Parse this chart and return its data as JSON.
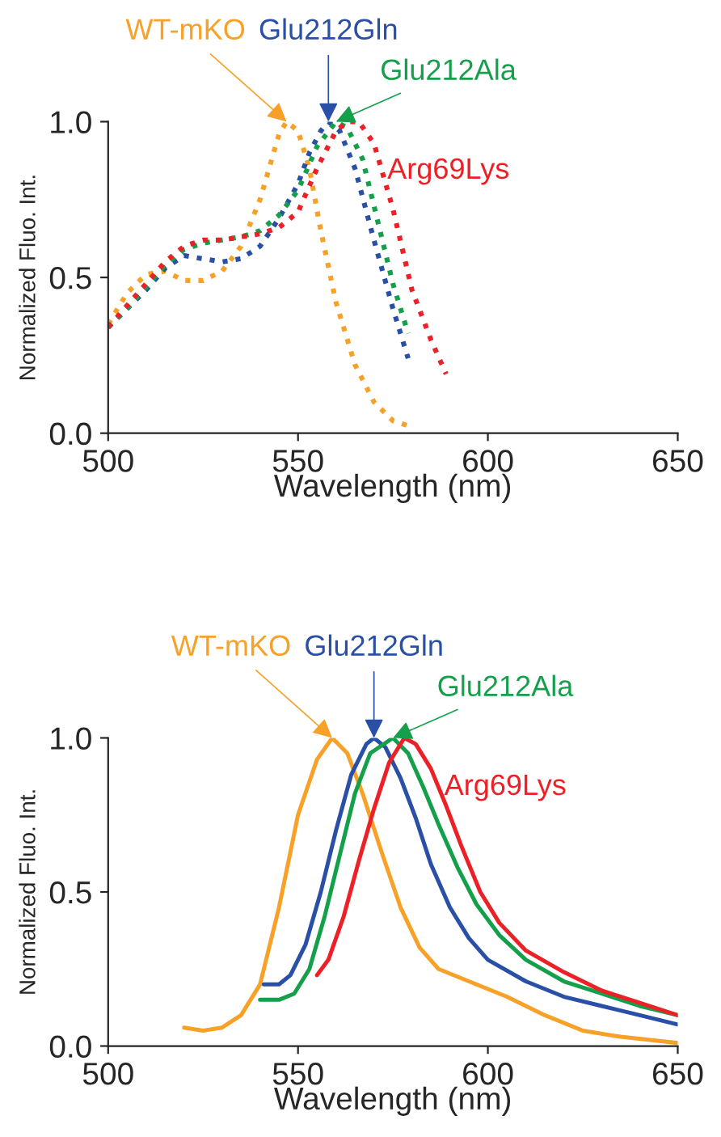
{
  "chart_data": [
    {
      "type": "line",
      "xlabel": "Wavelength (nm)",
      "ylabel": "Normalized Fluo. Int.",
      "xlim": [
        500,
        650
      ],
      "xticks": [
        500,
        550,
        600,
        650
      ],
      "ylim": [
        0,
        1.0
      ],
      "yticks": [
        {
          "value": 0,
          "label": "0.0"
        },
        {
          "value": 0.5,
          "label": "0.5"
        },
        {
          "value": 1.0,
          "label": "1.0"
        }
      ],
      "line_style": "dotted",
      "grid": false,
      "legend": false,
      "series": [
        {
          "name": "WT-mKO",
          "color": "#f7a128",
          "x": [
            500,
            505,
            510,
            515,
            520,
            525,
            530,
            535,
            540,
            545,
            547,
            550,
            553,
            556,
            560,
            565,
            570,
            575,
            580
          ],
          "values": [
            0.35,
            0.45,
            0.51,
            0.52,
            0.49,
            0.49,
            0.52,
            0.6,
            0.75,
            0.96,
            1.0,
            0.97,
            0.85,
            0.65,
            0.42,
            0.22,
            0.1,
            0.04,
            0.02
          ]
        },
        {
          "name": "Glu212Gln",
          "color": "#2a4fa6",
          "x": [
            500,
            505,
            510,
            515,
            520,
            525,
            530,
            535,
            540,
            545,
            550,
            553,
            556,
            558,
            561,
            565,
            570,
            575,
            579
          ],
          "values": [
            0.34,
            0.4,
            0.46,
            0.53,
            0.57,
            0.56,
            0.55,
            0.56,
            0.6,
            0.69,
            0.8,
            0.9,
            0.97,
            1.0,
            0.97,
            0.85,
            0.62,
            0.4,
            0.24
          ]
        },
        {
          "name": "Glu212Ala",
          "color": "#14a04a",
          "x": [
            500,
            505,
            510,
            515,
            520,
            525,
            530,
            535,
            540,
            545,
            550,
            555,
            560,
            563,
            567,
            571,
            575,
            579
          ],
          "values": [
            0.34,
            0.4,
            0.47,
            0.54,
            0.59,
            0.61,
            0.62,
            0.63,
            0.65,
            0.7,
            0.78,
            0.92,
            1.0,
            0.98,
            0.88,
            0.68,
            0.48,
            0.32
          ]
        },
        {
          "name": "Arg69Lys",
          "color": "#ec2027",
          "x": [
            500,
            505,
            510,
            515,
            520,
            525,
            530,
            535,
            540,
            545,
            550,
            555,
            560,
            563,
            566,
            570,
            575,
            580,
            585,
            589
          ],
          "values": [
            0.34,
            0.41,
            0.48,
            0.55,
            0.6,
            0.62,
            0.62,
            0.63,
            0.64,
            0.66,
            0.71,
            0.85,
            0.97,
            1.0,
            1.0,
            0.93,
            0.72,
            0.46,
            0.3,
            0.19
          ]
        }
      ]
    },
    {
      "type": "line",
      "xlabel": "Wavelength (nm)",
      "ylabel": "Normalized Fluo. Int.",
      "xlim": [
        500,
        650
      ],
      "xticks": [
        500,
        550,
        600,
        650
      ],
      "ylim": [
        0,
        1.0
      ],
      "yticks": [
        {
          "value": 0,
          "label": "0.0"
        },
        {
          "value": 0.5,
          "label": "0.5"
        },
        {
          "value": 1.0,
          "label": "1.0"
        }
      ],
      "line_style": "solid",
      "grid": false,
      "legend": false,
      "series": [
        {
          "name": "WT-mKO",
          "color": "#f7a128",
          "x": [
            520,
            525,
            530,
            535,
            540,
            545,
            550,
            555,
            559,
            563,
            567,
            572,
            577,
            582,
            587,
            595,
            605,
            615,
            625,
            635,
            650
          ],
          "values": [
            0.06,
            0.05,
            0.06,
            0.1,
            0.2,
            0.45,
            0.75,
            0.93,
            1.0,
            0.95,
            0.82,
            0.63,
            0.45,
            0.32,
            0.25,
            0.21,
            0.16,
            0.1,
            0.05,
            0.03,
            0.01
          ]
        },
        {
          "name": "Glu212Gln",
          "color": "#2a4fa6",
          "x": [
            541,
            545,
            548,
            552,
            556,
            560,
            564,
            568,
            570,
            573,
            577,
            581,
            585,
            590,
            595,
            600,
            610,
            620,
            630,
            640,
            650
          ],
          "values": [
            0.2,
            0.2,
            0.23,
            0.33,
            0.5,
            0.7,
            0.88,
            0.98,
            1.0,
            0.97,
            0.87,
            0.74,
            0.59,
            0.45,
            0.35,
            0.28,
            0.21,
            0.16,
            0.13,
            0.1,
            0.07
          ]
        },
        {
          "name": "Glu212Ala",
          "color": "#14a04a",
          "x": [
            540,
            545,
            549,
            553,
            557,
            561,
            565,
            569,
            575,
            579,
            583,
            587,
            592,
            597,
            603,
            610,
            620,
            630,
            640,
            650
          ],
          "values": [
            0.15,
            0.15,
            0.17,
            0.25,
            0.42,
            0.62,
            0.82,
            0.95,
            1.0,
            0.95,
            0.84,
            0.72,
            0.58,
            0.46,
            0.36,
            0.28,
            0.21,
            0.17,
            0.13,
            0.1
          ]
        },
        {
          "name": "Arg69Lys",
          "color": "#ec2027",
          "x": [
            555,
            558,
            562,
            566,
            570,
            574,
            578,
            581,
            585,
            589,
            593,
            598,
            603,
            610,
            620,
            630,
            640,
            650
          ],
          "values": [
            0.23,
            0.28,
            0.42,
            0.6,
            0.77,
            0.92,
            1.0,
            0.98,
            0.9,
            0.78,
            0.65,
            0.5,
            0.4,
            0.31,
            0.24,
            0.18,
            0.14,
            0.1
          ]
        }
      ]
    }
  ]
}
